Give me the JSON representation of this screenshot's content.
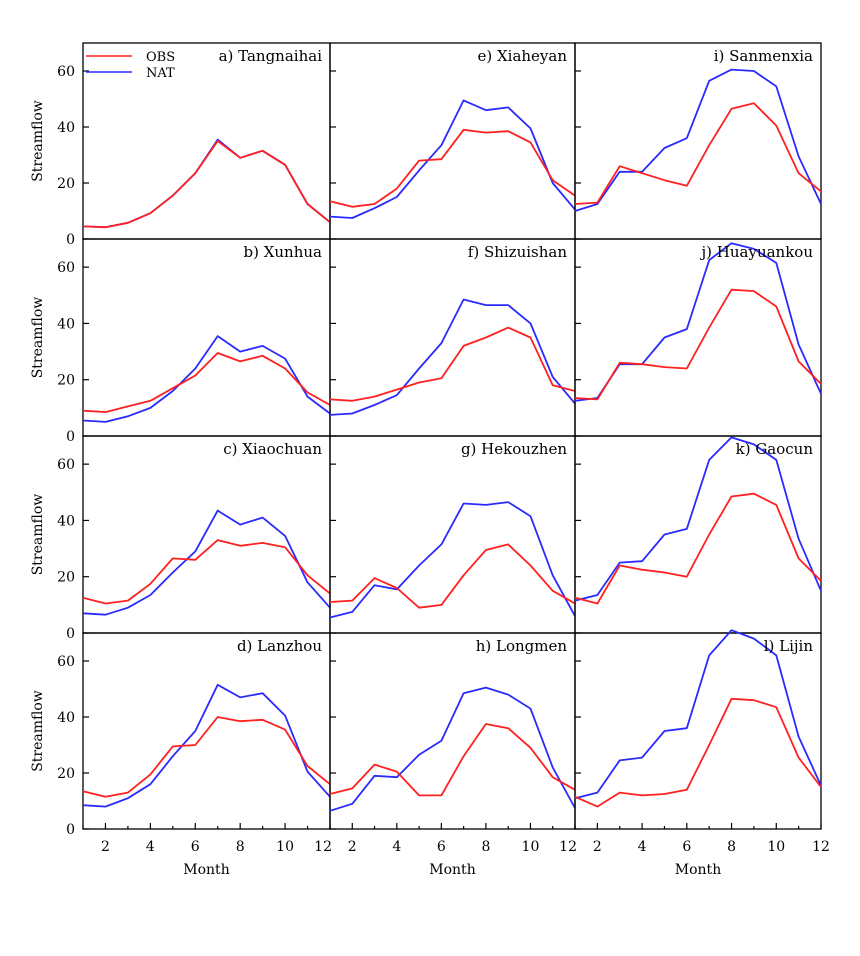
{
  "chart_data": {
    "type": "line",
    "layout": "4 rows x 3 columns of small-multiple line panels",
    "xlabel": "Month",
    "ylabel": "Streamflow",
    "x": [
      1,
      2,
      3,
      4,
      5,
      6,
      7,
      8,
      9,
      10,
      11,
      12
    ],
    "xlim": [
      1,
      12
    ],
    "xticks": [
      2,
      4,
      6,
      8,
      10,
      12
    ],
    "ylim": [
      0,
      70
    ],
    "yticks": [
      0,
      20,
      40,
      60
    ],
    "legend": [
      {
        "name": "OBS",
        "color": "#ff2020"
      },
      {
        "name": "NAT",
        "color": "#2a2aff"
      }
    ],
    "legend_placement": "top-left of first panel",
    "panels": [
      {
        "title": "a) Tangnaihai",
        "OBS": [
          4.5,
          4.2,
          5.8,
          9.2,
          15.5,
          23.5,
          35.0,
          29.0,
          31.5,
          26.5,
          12.5,
          6.0
        ],
        "NAT": [
          4.5,
          4.2,
          5.8,
          9.2,
          15.5,
          23.5,
          35.5,
          29.0,
          31.5,
          26.5,
          12.5,
          6.0
        ]
      },
      {
        "title": "b) Xunhua",
        "OBS": [
          9.0,
          8.5,
          10.5,
          12.5,
          17.0,
          21.5,
          29.5,
          26.5,
          28.5,
          24.0,
          15.5,
          11.0
        ],
        "NAT": [
          5.5,
          5.0,
          7.0,
          10.0,
          16.0,
          24.0,
          35.5,
          30.0,
          32.0,
          27.5,
          14.0,
          8.0
        ]
      },
      {
        "title": "c) Xiaochuan",
        "OBS": [
          12.5,
          10.5,
          11.5,
          17.5,
          26.5,
          26.0,
          33.0,
          31.0,
          32.0,
          30.5,
          20.5,
          14.0
        ],
        "NAT": [
          7.0,
          6.5,
          9.0,
          13.5,
          21.5,
          29.0,
          43.5,
          38.5,
          41.0,
          34.5,
          18.0,
          9.0
        ]
      },
      {
        "title": "d) Lanzhou",
        "OBS": [
          13.5,
          11.5,
          13.0,
          19.5,
          29.5,
          30.0,
          40.0,
          38.5,
          39.0,
          35.5,
          22.5,
          16.0
        ],
        "NAT": [
          8.5,
          8.0,
          11.0,
          16.0,
          26.0,
          35.0,
          51.5,
          47.0,
          48.5,
          40.5,
          20.5,
          11.5
        ]
      },
      {
        "title": "e) Xiaheyan",
        "OBS": [
          13.5,
          11.5,
          12.5,
          18.0,
          28.0,
          28.5,
          39.0,
          38.0,
          38.5,
          34.5,
          21.0,
          15.5
        ],
        "NAT": [
          8.0,
          7.5,
          11.0,
          15.0,
          24.5,
          33.5,
          49.5,
          46.0,
          47.0,
          39.5,
          20.0,
          10.5
        ]
      },
      {
        "title": "f) Shizuishan",
        "OBS": [
          13.0,
          12.5,
          14.0,
          16.5,
          19.0,
          20.5,
          32.0,
          35.0,
          38.5,
          35.0,
          18.0,
          16.0
        ],
        "NAT": [
          7.5,
          8.0,
          11.0,
          14.5,
          24.0,
          33.0,
          48.5,
          46.5,
          46.5,
          40.0,
          21.0,
          11.5
        ]
      },
      {
        "title": "g) Hekouzhen",
        "OBS": [
          11.0,
          11.5,
          19.5,
          16.0,
          9.0,
          10.0,
          20.5,
          29.5,
          31.5,
          24.0,
          15.0,
          10.5
        ],
        "NAT": [
          5.5,
          7.5,
          17.0,
          15.5,
          24.0,
          31.5,
          46.0,
          45.5,
          46.5,
          41.5,
          20.5,
          6.0
        ]
      },
      {
        "title": "h) Longmen",
        "OBS": [
          12.5,
          14.5,
          23.0,
          20.5,
          12.0,
          12.0,
          26.0,
          37.5,
          36.0,
          29.0,
          18.5,
          14.0
        ],
        "NAT": [
          6.5,
          9.0,
          19.0,
          18.5,
          26.5,
          31.5,
          48.5,
          50.5,
          48.0,
          43.0,
          22.0,
          7.5
        ]
      },
      {
        "title": "i) Sanmenxia",
        "OBS": [
          12.5,
          13.0,
          26.0,
          23.5,
          21.0,
          19.0,
          33.5,
          46.5,
          48.5,
          40.5,
          23.5,
          17.0
        ],
        "NAT": [
          10.0,
          12.5,
          24.0,
          24.0,
          32.5,
          36.0,
          56.5,
          60.5,
          60.0,
          54.5,
          29.5,
          12.5
        ]
      },
      {
        "title": "j) Huayuankou",
        "OBS": [
          13.5,
          13.0,
          26.0,
          25.5,
          24.5,
          24.0,
          38.5,
          52.0,
          51.5,
          46.0,
          26.5,
          18.5
        ],
        "NAT": [
          12.5,
          13.5,
          25.5,
          25.5,
          35.0,
          38.0,
          62.5,
          68.5,
          66.5,
          61.5,
          32.5,
          15.0
        ]
      },
      {
        "title": "k) Gaocun",
        "OBS": [
          12.5,
          10.5,
          24.0,
          22.5,
          21.5,
          20.0,
          35.0,
          48.5,
          49.5,
          45.5,
          26.5,
          18.5
        ],
        "NAT": [
          11.5,
          13.5,
          25.0,
          25.5,
          35.0,
          37.0,
          61.5,
          69.5,
          67.0,
          61.5,
          33.5,
          15.0
        ]
      },
      {
        "title": "l) Lijin",
        "OBS": [
          11.5,
          8.0,
          13.0,
          12.0,
          12.5,
          14.0,
          30.0,
          46.5,
          46.0,
          43.5,
          25.5,
          15.0
        ],
        "NAT": [
          11.0,
          13.0,
          24.5,
          25.5,
          35.0,
          36.0,
          62.0,
          71.0,
          68.0,
          62.0,
          33.0,
          15.5
        ]
      }
    ]
  }
}
